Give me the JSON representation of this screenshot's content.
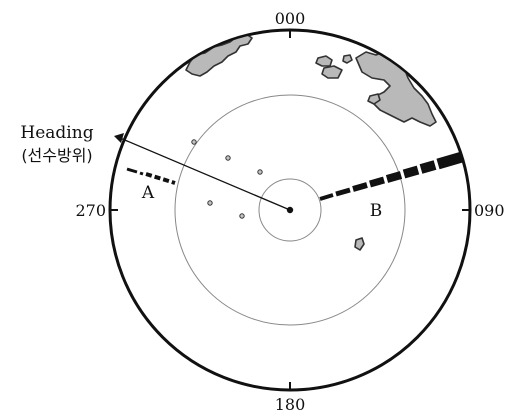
{
  "bearings": {
    "north": "000",
    "east": "090",
    "south": "180",
    "west": "270"
  },
  "heading": {
    "line1": "Heading",
    "line2": "(선수방위)"
  },
  "markers": {
    "a": "A",
    "b": "B"
  },
  "colors": {
    "ink": "#111111",
    "land_fill": "#b9b9b9",
    "ring": "#888888"
  }
}
